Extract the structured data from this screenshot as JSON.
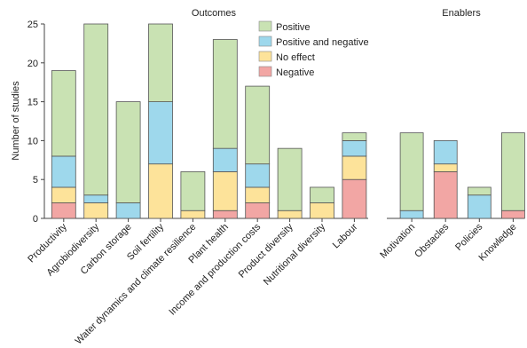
{
  "chart_data": [
    {
      "type": "bar",
      "stacked": true,
      "title": "Outcomes",
      "ylabel": "Number of studies",
      "xlabel": "",
      "ylim": [
        0,
        25
      ],
      "yticks": [
        "0",
        "5",
        "10",
        "15",
        "20",
        "25"
      ],
      "grid": false,
      "legend": "top-right",
      "categories": [
        "Productivity",
        "Agrobiodiversity",
        "Carbon storage",
        "Soil fertility",
        "Water dynamics and climate resilience",
        "Plant health",
        "Income and production costs",
        "Product diversity",
        "Nutritional diversity",
        "Labour"
      ],
      "series": [
        {
          "name": "Negative",
          "color": "#f2a6a4",
          "values": [
            2,
            0,
            0,
            0,
            0,
            1,
            2,
            0,
            0,
            5
          ]
        },
        {
          "name": "No effect",
          "color": "#fde39a",
          "values": [
            2,
            2,
            0,
            7,
            1,
            5,
            2,
            1,
            2,
            3
          ]
        },
        {
          "name": "Positive and negative",
          "color": "#9ed8ec",
          "values": [
            4,
            1,
            2,
            8,
            0,
            3,
            3,
            0,
            0,
            2
          ]
        },
        {
          "name": "Positive",
          "color": "#c9e2b3",
          "values": [
            11,
            22,
            13,
            10,
            5,
            14,
            10,
            8,
            2,
            1
          ]
        }
      ]
    },
    {
      "type": "bar",
      "stacked": true,
      "title": "Enablers",
      "xlabel": "",
      "ylim": [
        0,
        25
      ],
      "grid": false,
      "categories": [
        "Motivation",
        "Obstacles",
        "Policies",
        "Knowledge"
      ],
      "series": [
        {
          "name": "Negative",
          "color": "#f2a6a4",
          "values": [
            0,
            6,
            0,
            1
          ]
        },
        {
          "name": "No effect",
          "color": "#fde39a",
          "values": [
            0,
            1,
            0,
            0
          ]
        },
        {
          "name": "Positive and negative",
          "color": "#9ed8ec",
          "values": [
            1,
            3,
            3,
            0
          ]
        },
        {
          "name": "Positive",
          "color": "#c9e2b3",
          "values": [
            10,
            0,
            1,
            10
          ]
        }
      ]
    }
  ],
  "legend_order": [
    "Positive",
    "Positive and negative",
    "No effect",
    "Negative"
  ]
}
